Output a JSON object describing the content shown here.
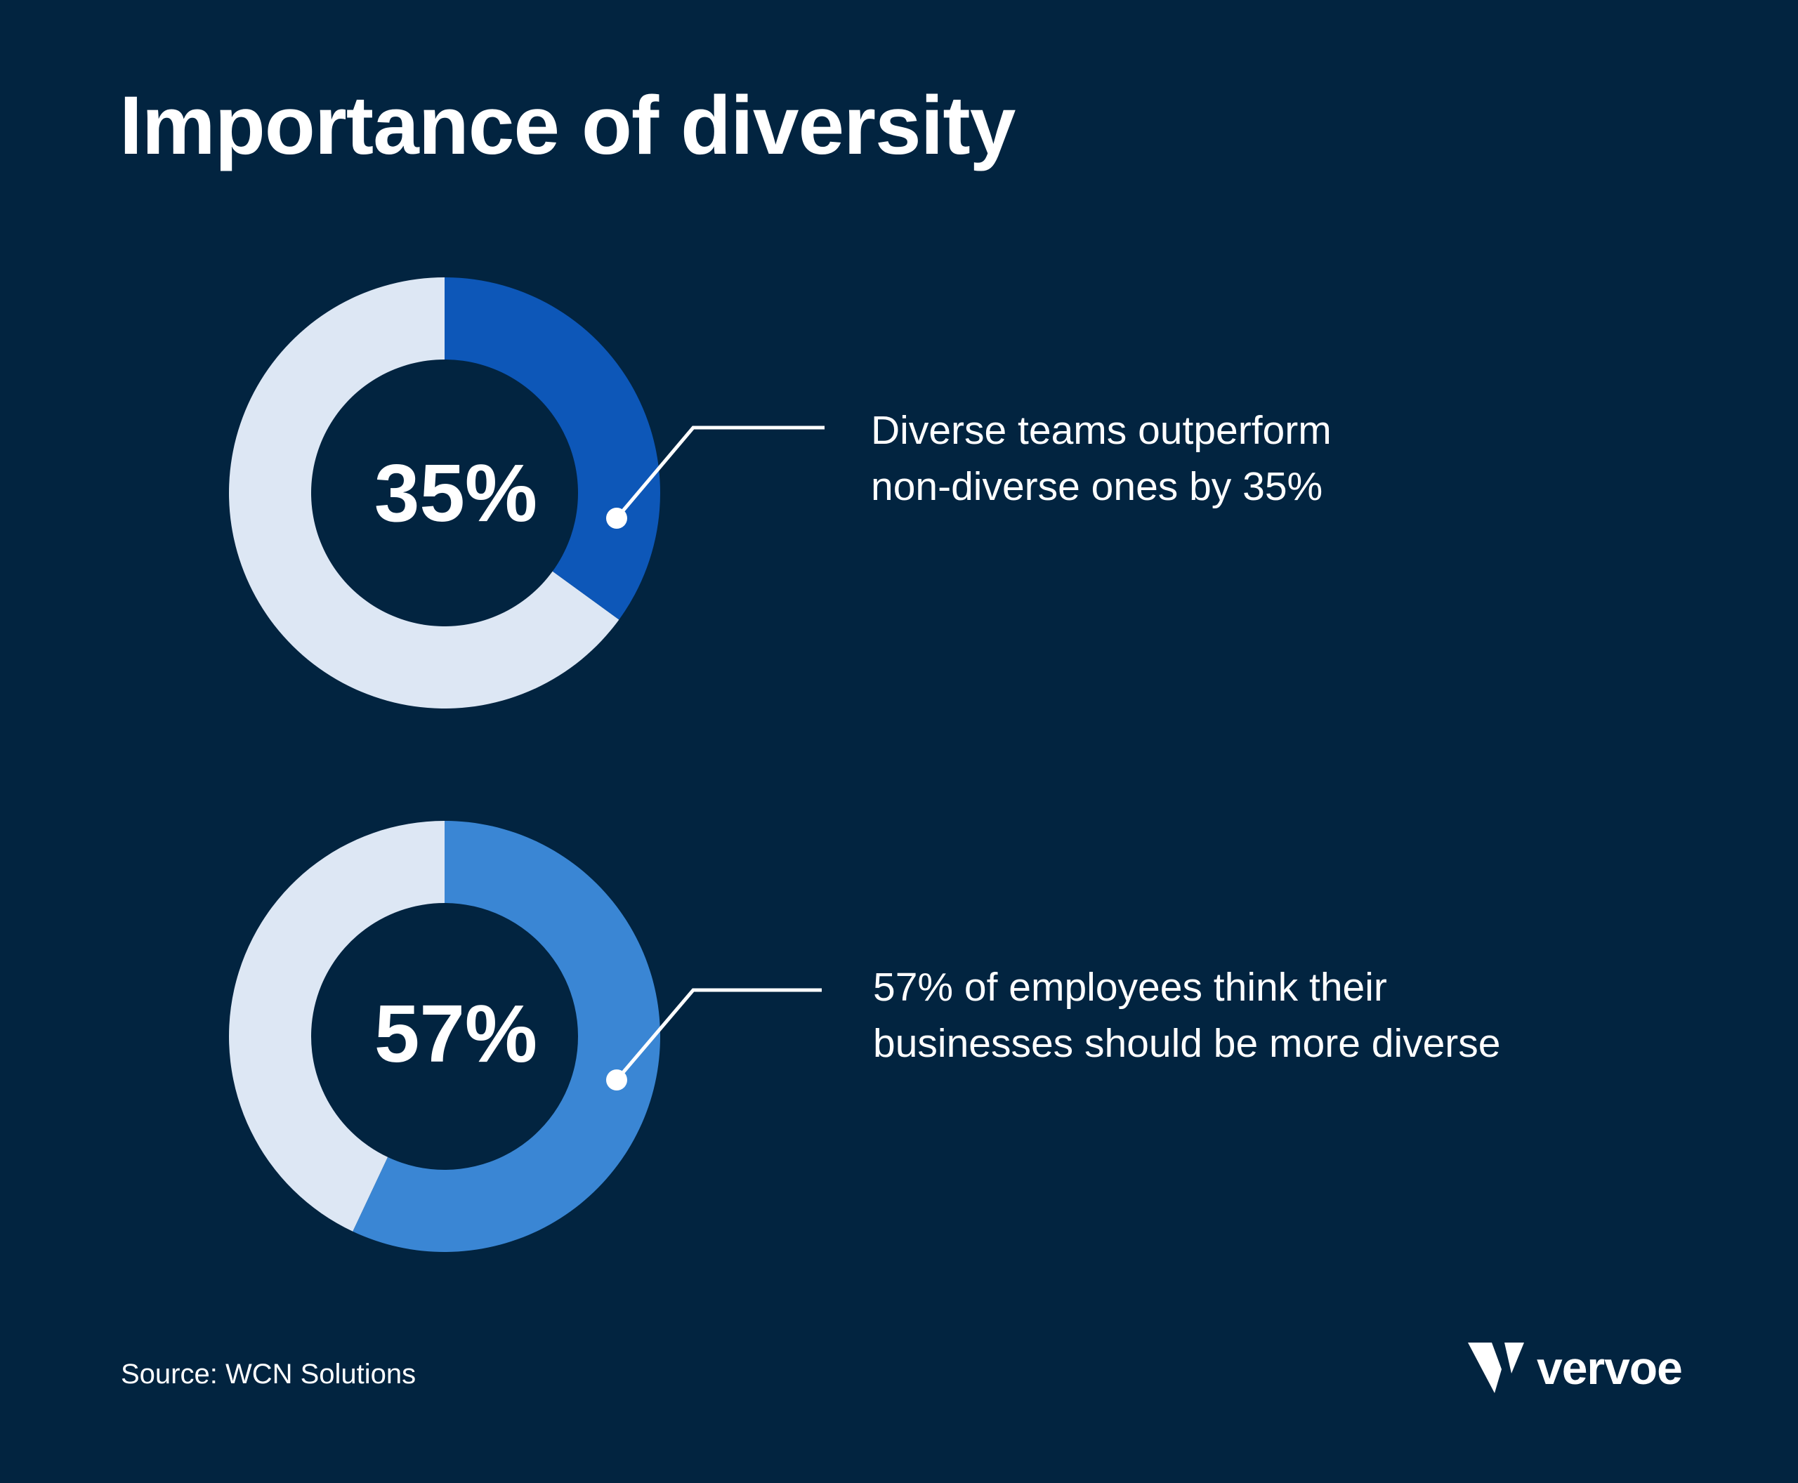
{
  "title": "Importance of diversity",
  "source": "Source: WCN Solutions",
  "brand": "vervoe",
  "colors": {
    "background": "#022440",
    "track": "#DDE7F4",
    "donut1_fill": "#0D57B8",
    "donut2_fill": "#3A86D4",
    "text": "#FFFFFF"
  },
  "chart_data": [
    {
      "type": "pie",
      "style": "donut",
      "values": [
        35,
        65
      ],
      "center_label": "35%",
      "annotation": [
        "Diverse teams outperform",
        "non-diverse ones by 35%"
      ]
    },
    {
      "type": "pie",
      "style": "donut",
      "values": [
        57,
        43
      ],
      "center_label": "57%",
      "annotation": [
        "57% of employees think their",
        "businesses should be more diverse"
      ]
    }
  ]
}
